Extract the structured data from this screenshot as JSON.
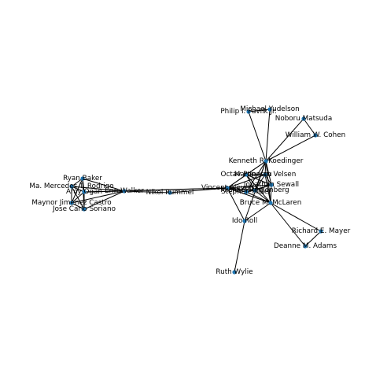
{
  "graph": {
    "node_color": "#1f77b4",
    "edge_color": "#000000",
    "nodes": [
      {
        "id": "michael",
        "label": "Michael Yudelson"
      },
      {
        "id": "philip",
        "label": "Philip I. Pavlik Jr."
      },
      {
        "id": "noboru",
        "label": "Noboru Matsuda"
      },
      {
        "id": "william",
        "label": "William W. Cohen"
      },
      {
        "id": "kenneth",
        "label": "Kenneth R. Koedinger"
      },
      {
        "id": "octav",
        "label": "Octav Popescu"
      },
      {
        "id": "martin",
        "label": "Martin van Velsen"
      },
      {
        "id": "jonathan",
        "label": "Jonathan Sewall"
      },
      {
        "id": "vincent",
        "label": "Vincent Aleven"
      },
      {
        "id": "michael_r",
        "label": "Michael Ringenberg"
      },
      {
        "id": "stephen",
        "label": "Stephen Ritter"
      },
      {
        "id": "bruce",
        "label": "Bruce M. McLaren"
      },
      {
        "id": "ido",
        "label": "Ido Roll"
      },
      {
        "id": "richard",
        "label": "Richard E. Mayer"
      },
      {
        "id": "deanne",
        "label": "Deanne M. Adams"
      },
      {
        "id": "ruth",
        "label": "Ruth Wylie"
      },
      {
        "id": "ryan",
        "label": "Ryan Baker"
      },
      {
        "id": "mercedes",
        "label": "Ma. Mercedes T. Rodrigo"
      },
      {
        "id": "amy",
        "label": "Amy Ogan"
      },
      {
        "id": "erin",
        "label": "Erin Walker"
      },
      {
        "id": "nikol",
        "label": "Nikol Rummel"
      },
      {
        "id": "maynor",
        "label": "Maynor Jimenez Castro"
      },
      {
        "id": "jose",
        "label": "Jose Carlo Soriano"
      }
    ],
    "edges": [
      [
        "michael",
        "philip"
      ],
      [
        "michael",
        "kenneth"
      ],
      [
        "philip",
        "kenneth"
      ],
      [
        "noboru",
        "william"
      ],
      [
        "noboru",
        "kenneth"
      ],
      [
        "william",
        "kenneth"
      ],
      [
        "kenneth",
        "octav"
      ],
      [
        "kenneth",
        "martin"
      ],
      [
        "kenneth",
        "jonathan"
      ],
      [
        "kenneth",
        "vincent"
      ],
      [
        "kenneth",
        "michael_r"
      ],
      [
        "kenneth",
        "stephen"
      ],
      [
        "kenneth",
        "bruce"
      ],
      [
        "kenneth",
        "ido"
      ],
      [
        "octav",
        "martin"
      ],
      [
        "octav",
        "jonathan"
      ],
      [
        "octav",
        "vincent"
      ],
      [
        "octav",
        "michael_r"
      ],
      [
        "octav",
        "bruce"
      ],
      [
        "martin",
        "jonathan"
      ],
      [
        "martin",
        "vincent"
      ],
      [
        "martin",
        "michael_r"
      ],
      [
        "martin",
        "bruce"
      ],
      [
        "jonathan",
        "vincent"
      ],
      [
        "jonathan",
        "michael_r"
      ],
      [
        "jonathan",
        "bruce"
      ],
      [
        "jonathan",
        "stephen"
      ],
      [
        "vincent",
        "michael_r"
      ],
      [
        "vincent",
        "stephen"
      ],
      [
        "vincent",
        "bruce"
      ],
      [
        "vincent",
        "ido"
      ],
      [
        "vincent",
        "erin"
      ],
      [
        "vincent",
        "amy"
      ],
      [
        "vincent",
        "nikol"
      ],
      [
        "michael_r",
        "bruce"
      ],
      [
        "michael_r",
        "stephen"
      ],
      [
        "stephen",
        "bruce"
      ],
      [
        "bruce",
        "ido"
      ],
      [
        "bruce",
        "richard"
      ],
      [
        "bruce",
        "deanne"
      ],
      [
        "richard",
        "deanne"
      ],
      [
        "ido",
        "ruth"
      ],
      [
        "ryan",
        "mercedes"
      ],
      [
        "ryan",
        "amy"
      ],
      [
        "ryan",
        "maynor"
      ],
      [
        "ryan",
        "jose"
      ],
      [
        "ryan",
        "erin"
      ],
      [
        "mercedes",
        "amy"
      ],
      [
        "mercedes",
        "maynor"
      ],
      [
        "mercedes",
        "jose"
      ],
      [
        "mercedes",
        "erin"
      ],
      [
        "amy",
        "maynor"
      ],
      [
        "amy",
        "jose"
      ],
      [
        "amy",
        "erin"
      ],
      [
        "maynor",
        "jose"
      ],
      [
        "maynor",
        "erin"
      ],
      [
        "jose",
        "erin"
      ],
      [
        "erin",
        "nikol"
      ]
    ]
  }
}
